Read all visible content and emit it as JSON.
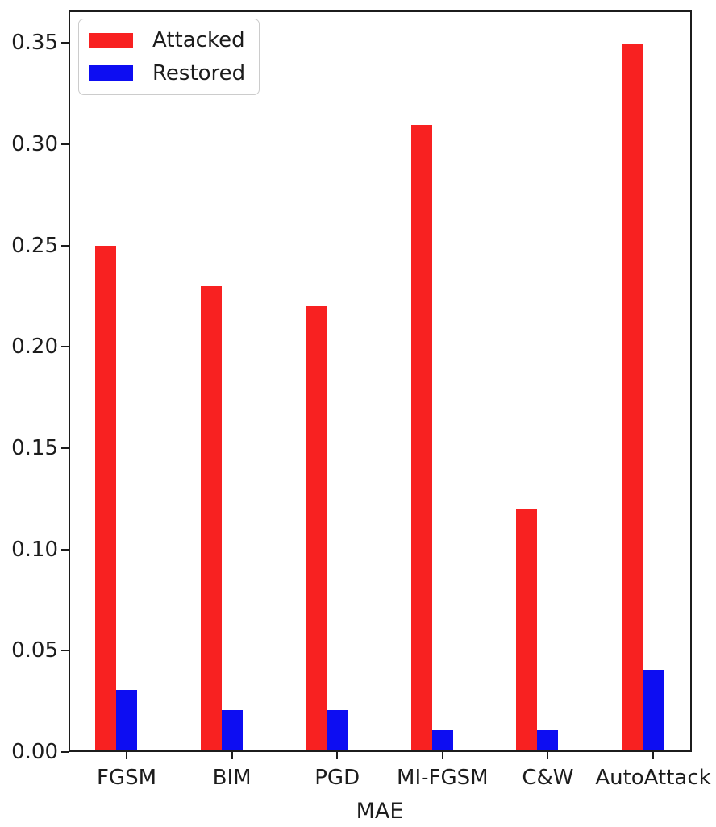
{
  "chart_data": {
    "type": "bar",
    "title": "",
    "xlabel": "MAE",
    "ylabel": "",
    "categories": [
      "FGSM",
      "BIM",
      "PGD",
      "MI-FGSM",
      "C&W",
      "AutoAttack"
    ],
    "series": [
      {
        "name": "Attacked",
        "color": "#f82121",
        "values": [
          0.25,
          0.23,
          0.22,
          0.31,
          0.12,
          0.35
        ]
      },
      {
        "name": "Restored",
        "color": "#0d0df2",
        "values": [
          0.03,
          0.02,
          0.02,
          0.01,
          0.01,
          0.04
        ]
      }
    ],
    "ylim": [
      0,
      0.366
    ],
    "yticks": [
      "0.00",
      "0.05",
      "0.10",
      "0.15",
      "0.20",
      "0.25",
      "0.30",
      "0.35"
    ],
    "legend_position": "upper left",
    "grid": false,
    "axis_color": "#1c1c1c",
    "text_color": "#1c1c1c",
    "background_color": "#ffffff"
  }
}
